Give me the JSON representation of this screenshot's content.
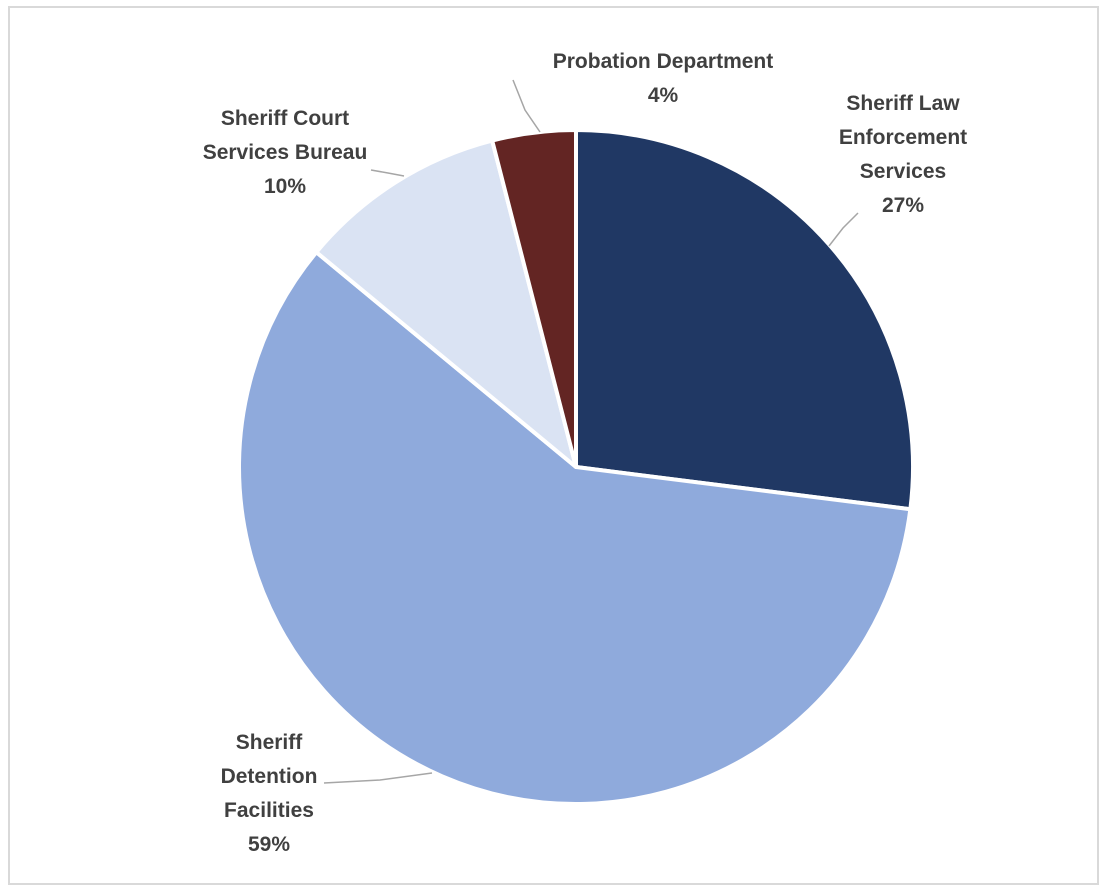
{
  "chart_data": {
    "type": "pie",
    "title": "",
    "slices": [
      {
        "name": "Sheriff Law Enforcement Services",
        "label_lines": [
          "Sheriff Law",
          "Enforcement",
          "Services"
        ],
        "value": 27,
        "value_label": "27%",
        "color": "#203864"
      },
      {
        "name": "Sheriff Detention Facilities",
        "label_lines": [
          "Sheriff",
          "Detention",
          "Facilities"
        ],
        "value": 59,
        "value_label": "59%",
        "color": "#8FAADC"
      },
      {
        "name": "Sheriff Court Services Bureau",
        "label_lines": [
          "Sheriff Court",
          "Services Bureau"
        ],
        "value": 10,
        "value_label": "10%",
        "color": "#DAE3F3"
      },
      {
        "name": "Probation Department",
        "label_lines": [
          "Probation Department"
        ],
        "value": 4,
        "value_label": "4%",
        "color": "#632523"
      }
    ],
    "legend": "none",
    "label_style": "outside-with-leader-lines"
  }
}
